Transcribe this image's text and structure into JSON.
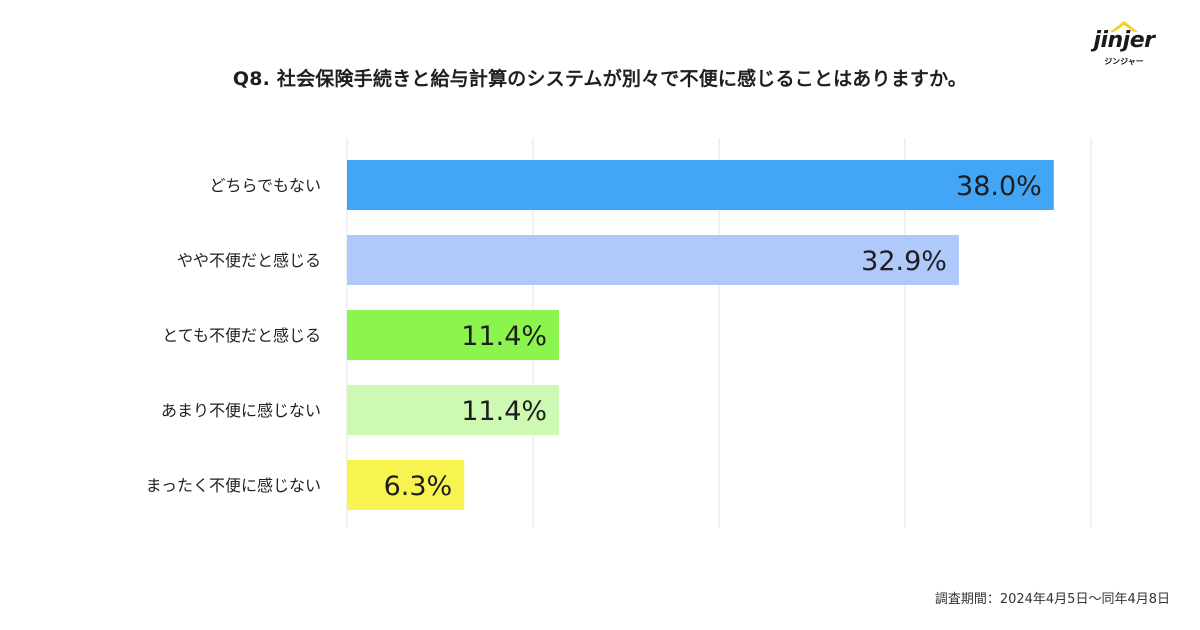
{
  "brand": {
    "logo_text": "jinjer",
    "logo_subtext": "ジンジャー",
    "logo_color": "#f5d21b"
  },
  "survey_note": "調査期間：2024年4月5日〜同年4月8日",
  "chart_data": {
    "type": "bar",
    "orientation": "horizontal",
    "title": "Q8. 社会保険手続きと給与計算のシステムが別々で不便に感じることはありますか。",
    "xlabel": "",
    "ylabel": "",
    "categories": [
      "どちらでもない",
      "やや不便だと感じる",
      "とても不便だと感じる",
      "あまり不便に感じない",
      "まったく不便に感じない"
    ],
    "values": [
      38.0,
      32.9,
      11.4,
      11.4,
      6.3
    ],
    "value_labels": [
      "38.0%",
      "32.9%",
      "11.4%",
      "11.4%",
      "6.3%"
    ],
    "bar_colors": [
      "#42a5f5",
      "#afc9fb",
      "#8cf54d",
      "#cdf9b2",
      "#f7f451"
    ],
    "xlim": [
      0,
      40
    ],
    "grid": true,
    "legend": "none"
  }
}
